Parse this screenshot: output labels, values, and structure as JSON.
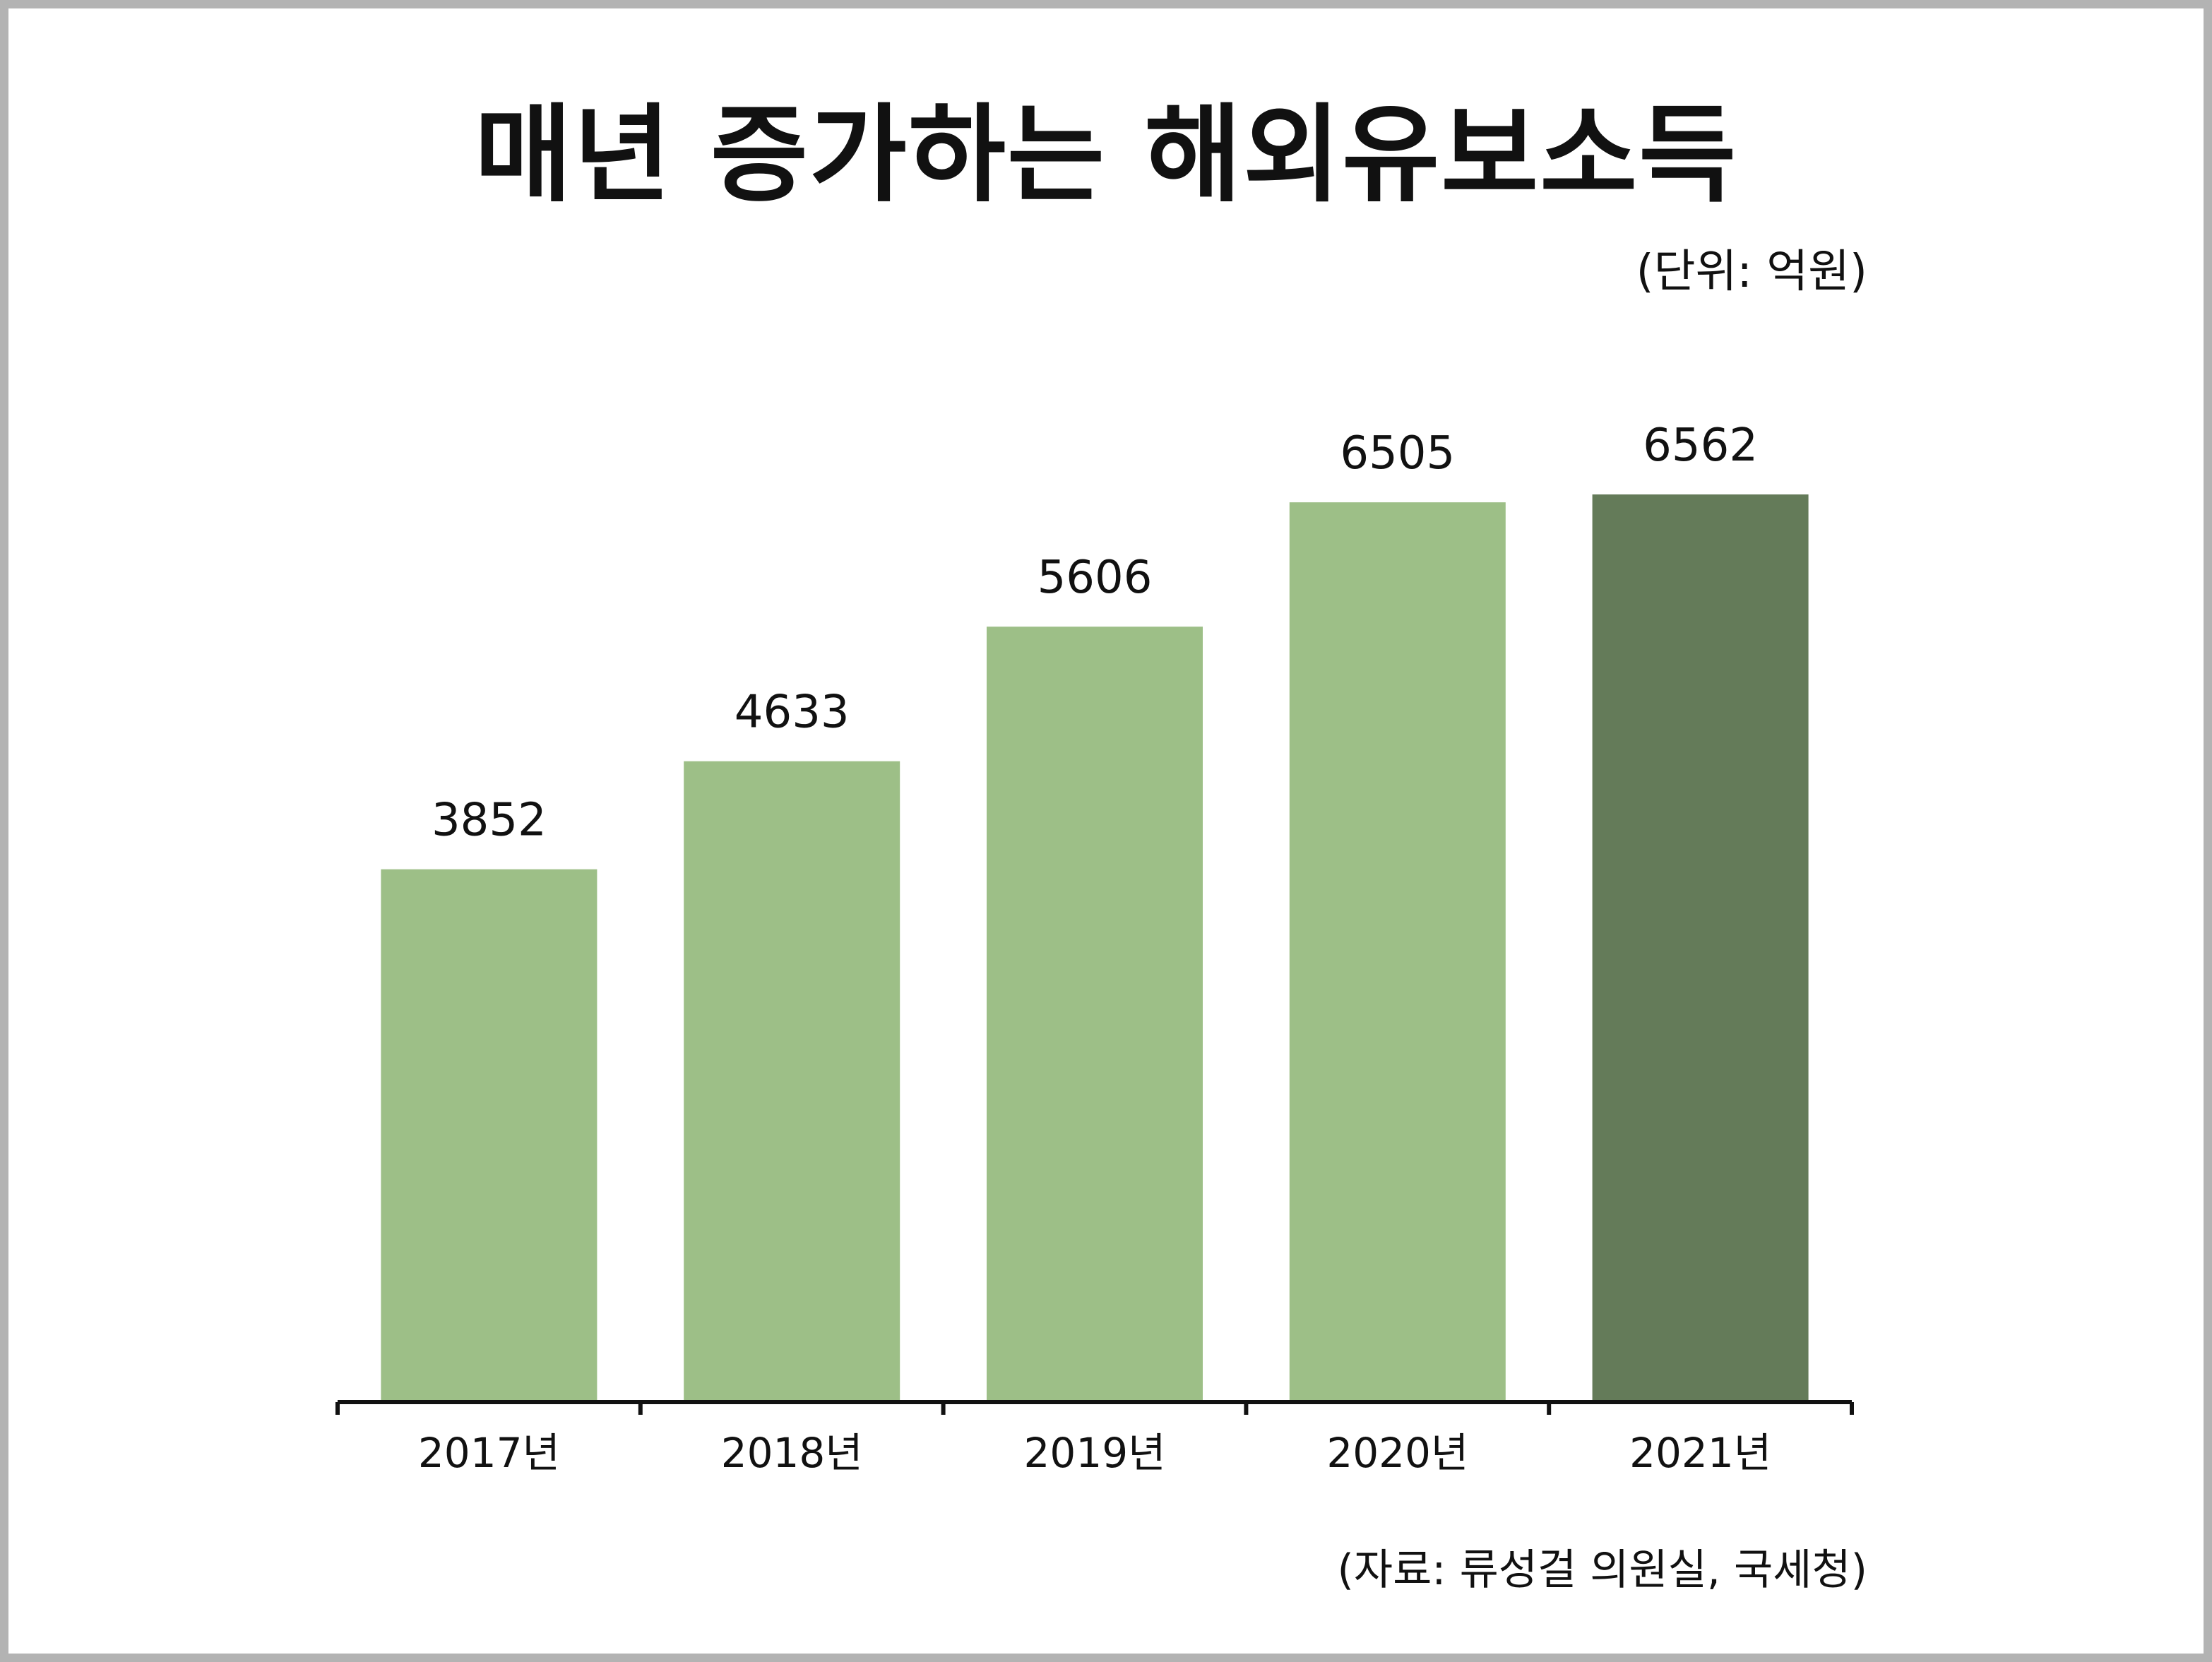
{
  "title": "매년 증가하는 해외유보소득",
  "unit_label": "(단위: 억원)",
  "source_label": "(자료: 류성걸 의원실, 국세청)",
  "colors": {
    "bar": "#9dbf87",
    "bar_highlight": "#647b59",
    "axis": "#111111",
    "border": "#b3b3b3"
  },
  "chart_data": {
    "type": "bar",
    "title": "매년 증가하는 해외유보소득",
    "xlabel": "",
    "ylabel": "",
    "categories": [
      "2017년",
      "2018년",
      "2019년",
      "2020년",
      "2021년"
    ],
    "values": [
      3852,
      4633,
      5606,
      6505,
      6562
    ],
    "highlight_index": 4,
    "ylim": [
      0,
      6562
    ],
    "grid": false,
    "legend": "none"
  }
}
